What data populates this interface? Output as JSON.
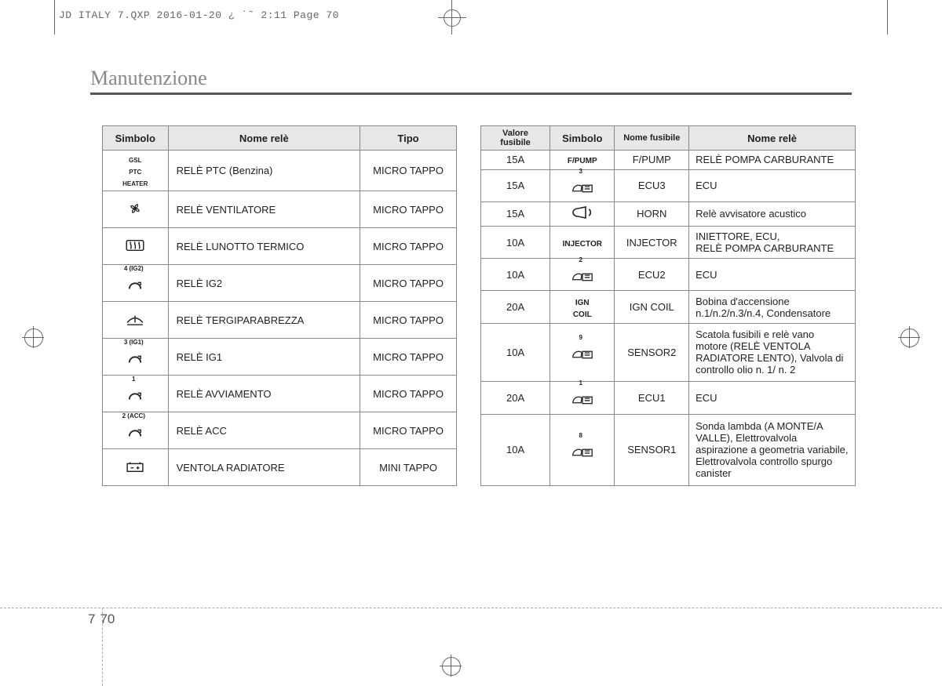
{
  "print_header": "JD ITALY 7.QXP  2016-01-20  ¿ ˙˜ 2:11  Page 70",
  "title": "Manutenzione",
  "page_section": "7",
  "page_number": "70",
  "table1": {
    "headers": [
      "Simbolo",
      "Nome relè",
      "Tipo"
    ],
    "rows": [
      {
        "symbol_kind": "text",
        "symbol": "GSL\nPTC\nHEATER",
        "name": "RELÈ PTC (Benzina)",
        "type": "MICRO TAPPO"
      },
      {
        "symbol_kind": "fan",
        "symbol": "",
        "name": "RELÈ VENTILATORE",
        "type": "MICRO TAPPO"
      },
      {
        "symbol_kind": "defrost",
        "symbol": "",
        "name": "RELÈ LUNOTTO TERMICO",
        "type": "MICRO TAPPO"
      },
      {
        "symbol_kind": "arc",
        "sup": "4 (IG2)",
        "symbol": "",
        "name": "RELÈ IG2",
        "type": "MICRO TAPPO"
      },
      {
        "symbol_kind": "wiper",
        "symbol": "",
        "name": "RELÈ TERGIPARABREZZA",
        "type": "MICRO TAPPO"
      },
      {
        "symbol_kind": "arc",
        "sup": "3 (IG1)",
        "symbol": "",
        "name": "RELÈ IG1",
        "type": "MICRO TAPPO"
      },
      {
        "symbol_kind": "arc",
        "sup": "1",
        "symbol": "",
        "name": "RELÈ AVVIAMENTO",
        "type": "MICRO TAPPO"
      },
      {
        "symbol_kind": "arc",
        "sup": "2 (ACC)",
        "symbol": "",
        "name": "RELÈ ACC",
        "type": "MICRO TAPPO"
      },
      {
        "symbol_kind": "battery",
        "symbol": "",
        "name": "VENTOLA RADIATORE",
        "type": "MINI TAPPO"
      }
    ]
  },
  "table2": {
    "headers": [
      "Valore fusibile",
      "Simbolo",
      "Nome fusibile",
      "Nome relè"
    ],
    "rows": [
      {
        "val": "15A",
        "symbol_kind": "text",
        "symbol": "F/PUMP",
        "fname": "F/PUMP",
        "rname": "RELÈ POMPA CARBURANTE"
      },
      {
        "val": "15A",
        "symbol_kind": "ecu",
        "sup": "3",
        "fname": "ECU3",
        "rname": "ECU"
      },
      {
        "val": "15A",
        "symbol_kind": "horn",
        "fname": "HORN",
        "rname": "Relè avvisatore acustico"
      },
      {
        "val": "10A",
        "symbol_kind": "text",
        "symbol": "INJECTOR",
        "fname": "INJECTOR",
        "rname": "INIETTORE, ECU,\nRELÈ POMPA CARBURANTE"
      },
      {
        "val": "10A",
        "symbol_kind": "ecu",
        "sup": "2",
        "fname": "ECU2",
        "rname": "ECU"
      },
      {
        "val": "20A",
        "symbol_kind": "text",
        "symbol": "IGN\nCOIL",
        "fname": "IGN COIL",
        "rname": "Bobina d'accensione\nn.1/n.2/n.3/n.4, Condensatore"
      },
      {
        "val": "10A",
        "symbol_kind": "ecu",
        "sup": "9",
        "fname": "SENSOR2",
        "rname": "Scatola fusibili e relè vano motore (RELÈ VENTOLA RADIATORE LENTO), Valvola di controllo olio n. 1/ n. 2"
      },
      {
        "val": "20A",
        "symbol_kind": "ecu",
        "sup": "1",
        "fname": "ECU1",
        "rname": "ECU"
      },
      {
        "val": "10A",
        "symbol_kind": "ecu",
        "sup": "8",
        "fname": "SENSOR1",
        "rname": "Sonda lambda (A MONTE/A VALLE), Elettrovalvola aspirazione a geometria variabile, Elettrovalvola controllo spurgo canister"
      }
    ]
  },
  "colors": {
    "border": "#888",
    "header_bg": "#e8e8e8",
    "text": "#222",
    "muted": "#666"
  }
}
